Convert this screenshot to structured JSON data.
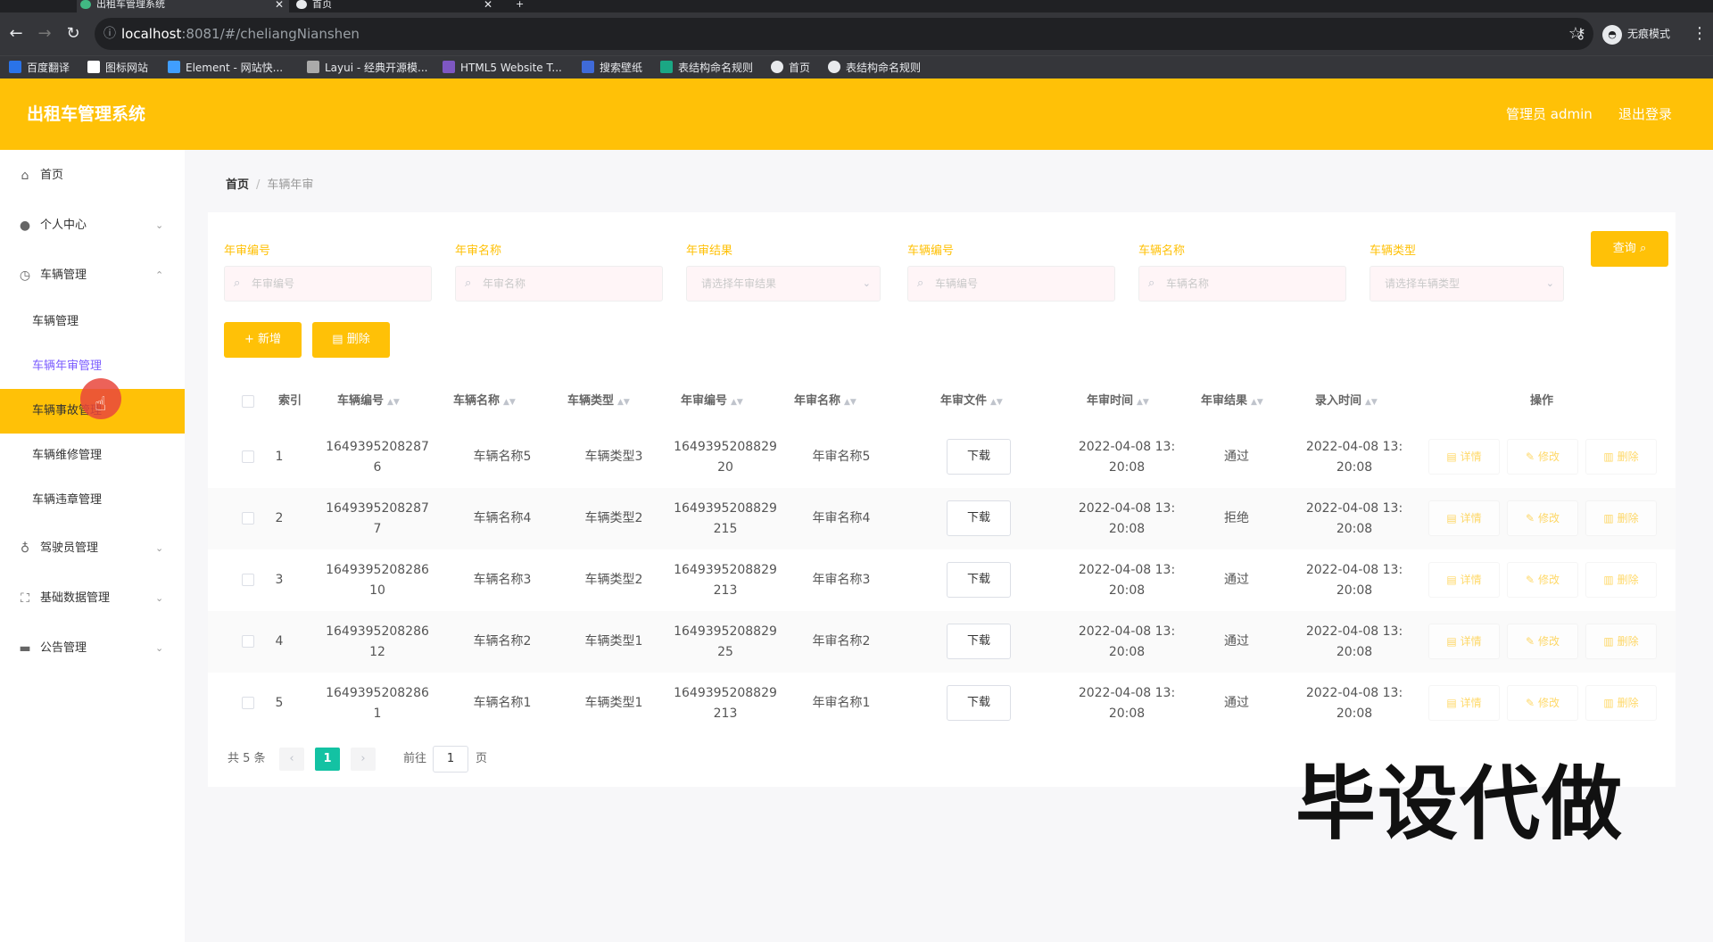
{
  "browser": {
    "tabs": [
      {
        "title": "出租车管理系统"
      },
      {
        "title": "首页"
      }
    ],
    "new_tab": "+",
    "url_host": "localhost",
    "url_path": ":8081/#/cheliangNianshen",
    "incognito_label": "无痕模式",
    "bookmarks": [
      {
        "label": "百度翻译",
        "color": "#2a73e8"
      },
      {
        "label": "图标网站",
        "color": "#ffffff"
      },
      {
        "label": "Element - 网站快...",
        "color": "#409eff"
      },
      {
        "label": "Layui - 经典开源模...",
        "color": "#aaaaaa"
      },
      {
        "label": "HTML5 Website T...",
        "color": "#7e57c2"
      },
      {
        "label": "搜索壁纸",
        "color": "#3f6ad8"
      },
      {
        "label": "表结构命名规则",
        "color": "#1ba784"
      },
      {
        "label": "首页",
        "color": "#e8eaed"
      },
      {
        "label": "表结构命名规则",
        "color": "#e8eaed"
      }
    ]
  },
  "header": {
    "title": "出租车管理系统",
    "admin": "管理员 admin",
    "logout": "退出登录",
    "bg_color": "#ffc107"
  },
  "sidebar": {
    "items": [
      {
        "label": "首页",
        "icon": "home-icon"
      },
      {
        "label": "个人中心",
        "icon": "user-icon"
      },
      {
        "label": "车辆管理",
        "icon": "clock-icon"
      },
      {
        "label": "驾驶员管理",
        "icon": "mic-icon"
      },
      {
        "label": "基础数据管理",
        "icon": "fullscreen-icon"
      },
      {
        "label": "公告管理",
        "icon": "briefcase-icon"
      }
    ],
    "sub_items": [
      {
        "label": "车辆管理"
      },
      {
        "label": "车辆年审管理"
      },
      {
        "label": "车辆事故管理"
      },
      {
        "label": "车辆维修管理"
      },
      {
        "label": "车辆违章管理"
      }
    ]
  },
  "breadcrumb": {
    "home": "首页",
    "separator": "/",
    "current": "车辆年审"
  },
  "filters": {
    "fields": [
      {
        "label": "年审编号",
        "placeholder": "年审编号",
        "type": "input"
      },
      {
        "label": "年审名称",
        "placeholder": "年审名称",
        "type": "input"
      },
      {
        "label": "年审结果",
        "placeholder": "请选择年审结果",
        "type": "select"
      },
      {
        "label": "车辆编号",
        "placeholder": "车辆编号",
        "type": "input"
      },
      {
        "label": "车辆名称",
        "placeholder": "车辆名称",
        "type": "input"
      },
      {
        "label": "车辆类型",
        "placeholder": "请选择车辆类型",
        "type": "select"
      }
    ],
    "query_button": "查询"
  },
  "toolbar": {
    "add_button": "新增",
    "delete_button": "删除"
  },
  "table": {
    "columns": [
      "索引",
      "车辆编号",
      "车辆名称",
      "车辆类型",
      "年审编号",
      "年审名称",
      "年审文件",
      "年审时间",
      "年审结果",
      "录入时间",
      "操作"
    ],
    "download_label": "下载",
    "actions": {
      "detail": "详情",
      "edit": "修改",
      "delete": "删除"
    },
    "rows": [
      {
        "index": "1",
        "car_no_1": "1649395208287",
        "car_no_2": "6",
        "car_name": "车辆名称5",
        "car_type": "车辆类型3",
        "audit_no_1": "1649395208829",
        "audit_no_2": "20",
        "audit_name": "年审名称5",
        "audit_time_1": "2022-04-08 13:",
        "audit_time_2": "20:08",
        "result": "通过",
        "entry_time_1": "2022-04-08 13:",
        "entry_time_2": "20:08"
      },
      {
        "index": "2",
        "car_no_1": "1649395208287",
        "car_no_2": "7",
        "car_name": "车辆名称4",
        "car_type": "车辆类型2",
        "audit_no_1": "1649395208829",
        "audit_no_2": "215",
        "audit_name": "年审名称4",
        "audit_time_1": "2022-04-08 13:",
        "audit_time_2": "20:08",
        "result": "拒绝",
        "entry_time_1": "2022-04-08 13:",
        "entry_time_2": "20:08"
      },
      {
        "index": "3",
        "car_no_1": "1649395208286",
        "car_no_2": "10",
        "car_name": "车辆名称3",
        "car_type": "车辆类型2",
        "audit_no_1": "1649395208829",
        "audit_no_2": "213",
        "audit_name": "年审名称3",
        "audit_time_1": "2022-04-08 13:",
        "audit_time_2": "20:08",
        "result": "通过",
        "entry_time_1": "2022-04-08 13:",
        "entry_time_2": "20:08"
      },
      {
        "index": "4",
        "car_no_1": "1649395208286",
        "car_no_2": "12",
        "car_name": "车辆名称2",
        "car_type": "车辆类型1",
        "audit_no_1": "1649395208829",
        "audit_no_2": "25",
        "audit_name": "年审名称2",
        "audit_time_1": "2022-04-08 13:",
        "audit_time_2": "20:08",
        "result": "通过",
        "entry_time_1": "2022-04-08 13:",
        "entry_time_2": "20:08"
      },
      {
        "index": "5",
        "car_no_1": "1649395208286",
        "car_no_2": "1",
        "car_name": "车辆名称1",
        "car_type": "车辆类型1",
        "audit_no_1": "1649395208829",
        "audit_no_2": "213",
        "audit_name": "年审名称1",
        "audit_time_1": "2022-04-08 13:",
        "audit_time_2": "20:08",
        "result": "通过",
        "entry_time_1": "2022-04-08 13:",
        "entry_time_2": "20:08"
      }
    ]
  },
  "pagination": {
    "total": "共 5 条",
    "current_page": "1",
    "goto_label": "前往",
    "goto_value": "1",
    "page_suffix": "页",
    "active_color": "#13c2a3"
  },
  "watermark": "毕设代做"
}
